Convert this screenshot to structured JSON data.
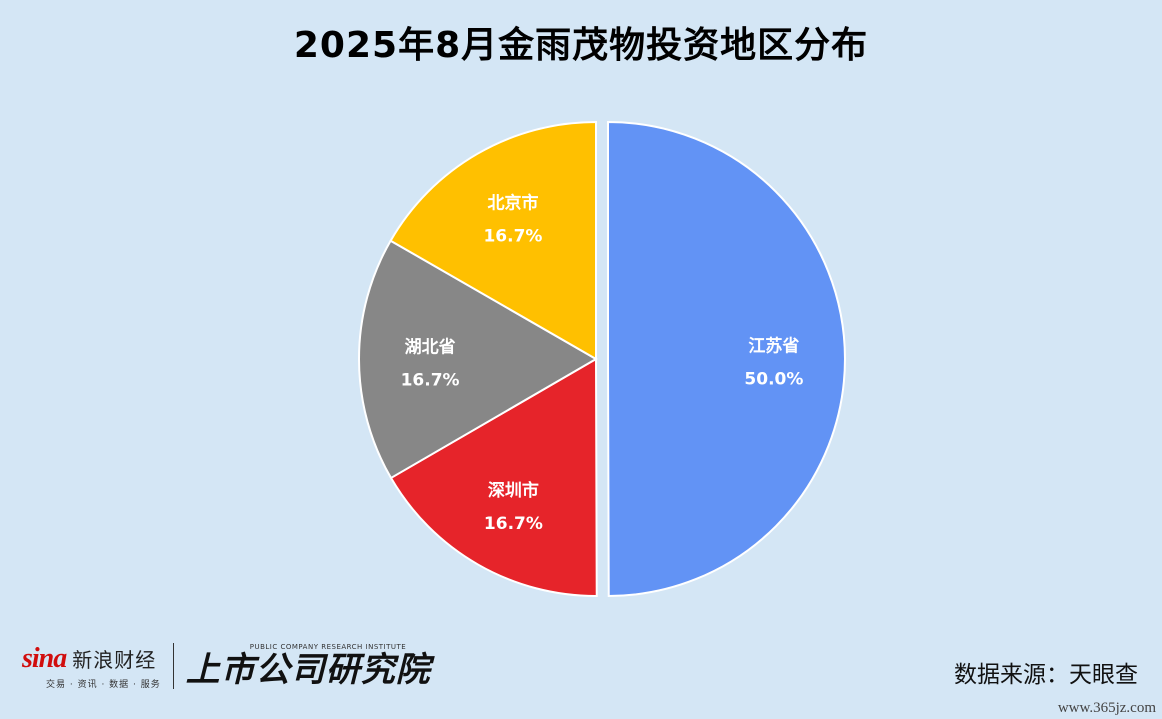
{
  "chart_data": {
    "type": "pie",
    "title": "2025年8月金雨茂物投资地区分布",
    "slices": [
      {
        "label": "江苏省",
        "value": 50.0,
        "pct_label": "50.0%",
        "color": "#6293f5",
        "text_color": "#ffffff",
        "exploded": true
      },
      {
        "label": "深圳市",
        "value": 16.7,
        "pct_label": "16.7%",
        "color": "#e6242a",
        "text_color": "#ffffff",
        "exploded": false
      },
      {
        "label": "湖北省",
        "value": 16.7,
        "pct_label": "16.7%",
        "color": "#878787",
        "text_color": "#ffffff",
        "exploded": false
      },
      {
        "label": "北京市",
        "value": 16.7,
        "pct_label": "16.7%",
        "color": "#ffc000",
        "text_color": "#ffffff",
        "exploded": false
      }
    ]
  },
  "footer": {
    "sina_wordmark": "sina",
    "sina_finance": "新浪财经",
    "sina_tagline": "交易 · 资讯 · 数据 · 服务",
    "institute_en": "PUBLIC COMPANY RESEARCH INSTITUTE",
    "institute_cn": "上市公司研究院",
    "source": "数据来源：天眼查",
    "watermark": "www.365jz.com"
  },
  "colors": {
    "background": "#d4e6f5"
  }
}
